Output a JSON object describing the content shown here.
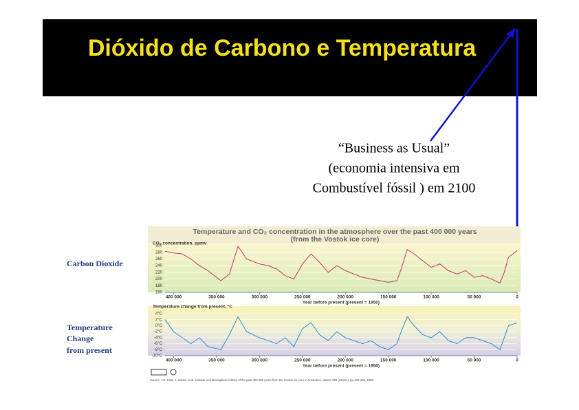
{
  "slide": {
    "title": "Dióxido de Carbono e Temperatura",
    "annotation": [
      "“Business as Usual”",
      "(economia intensiva em",
      "Combustível fóssil ) em 2100"
    ],
    "side_label_co2": "Carbon Dioxide",
    "side_label_temp": [
      "Temperature",
      "Change",
      "from present"
    ],
    "chart_header": [
      "Temperature and CO₂ concentration in the atmosphere over the past 400 000 years",
      "(from the Vostok ice core)"
    ],
    "source": "Source: J.R. Petit, J. Jouzel, et al. Climate and atmospheric history of the past 420 000 years from the Vostok ice core in Antarctica, Nature 399 (3JUne), pp 429-436, 1999."
  },
  "chart_data": [
    {
      "type": "line",
      "title": "CO₂ concentration, ppmv",
      "x_label": "Year before present (present = 1950)",
      "color": "#c2336e",
      "x": [
        410000,
        400000,
        390000,
        380000,
        370000,
        360000,
        345000,
        335000,
        325000,
        315000,
        300000,
        290000,
        280000,
        270000,
        260000,
        250000,
        240000,
        230000,
        220000,
        210000,
        200000,
        190000,
        180000,
        170000,
        160000,
        150000,
        140000,
        135000,
        128000,
        120000,
        110000,
        100000,
        90000,
        80000,
        70000,
        60000,
        50000,
        40000,
        30000,
        20000,
        15000,
        10000,
        5000,
        0
      ],
      "values": [
        283,
        278,
        275,
        260,
        240,
        225,
        195,
        215,
        298,
        260,
        245,
        240,
        230,
        210,
        200,
        245,
        275,
        250,
        220,
        240,
        225,
        215,
        205,
        200,
        195,
        190,
        195,
        230,
        288,
        275,
        255,
        235,
        245,
        225,
        215,
        225,
        205,
        210,
        200,
        188,
        220,
        265,
        275,
        285
      ],
      "xlim": [
        410000,
        0
      ],
      "xticks": [
        {
          "value": 400000,
          "label": "400 000"
        },
        {
          "value": 350000,
          "label": "350 000"
        },
        {
          "value": 300000,
          "label": "300 000"
        },
        {
          "value": 250000,
          "label": "250 000"
        },
        {
          "value": 200000,
          "label": "200 000"
        },
        {
          "value": 150000,
          "label": "150 000"
        },
        {
          "value": 100000,
          "label": "100 000"
        },
        {
          "value": 50000,
          "label": "50 000"
        },
        0
      ],
      "ylim": [
        160,
        300
      ],
      "yticks": [
        160,
        180,
        200,
        220,
        240,
        260,
        280,
        300
      ]
    },
    {
      "type": "line",
      "title": "Temperature change from present, °C",
      "x_label": "Year before present (present = 1950)",
      "color": "#2f8ccc",
      "x": [
        410000,
        400000,
        390000,
        380000,
        370000,
        360000,
        345000,
        335000,
        325000,
        315000,
        300000,
        290000,
        280000,
        270000,
        260000,
        250000,
        240000,
        230000,
        220000,
        210000,
        200000,
        190000,
        180000,
        170000,
        160000,
        150000,
        140000,
        135000,
        128000,
        120000,
        110000,
        100000,
        90000,
        80000,
        70000,
        60000,
        50000,
        40000,
        30000,
        20000,
        15000,
        10000,
        5000,
        0
      ],
      "values": [
        2,
        -2,
        -4,
        -6,
        -4,
        -7,
        -8,
        -3,
        3,
        -2,
        -4,
        -5,
        -6,
        -4,
        -7,
        -1,
        1,
        -3,
        -5,
        -2,
        -4,
        -5,
        -6,
        -5,
        -7,
        -8,
        -6,
        -2,
        3,
        0,
        -3,
        -4,
        -2,
        -5,
        -6,
        -4,
        -4,
        -5,
        -6,
        -8,
        -4,
        0,
        0.5,
        1
      ],
      "xlim": [
        410000,
        0
      ],
      "xticks": [
        {
          "value": 400000,
          "label": "400 000"
        },
        {
          "value": 350000,
          "label": "350 000"
        },
        {
          "value": 300000,
          "label": "300 000"
        },
        {
          "value": 250000,
          "label": "250 000"
        },
        {
          "value": 200000,
          "label": "200 000"
        },
        {
          "value": 150000,
          "label": "150 000"
        },
        {
          "value": 100000,
          "label": "100 000"
        },
        {
          "value": 50000,
          "label": "50 000"
        },
        0
      ],
      "ylim": [
        -10,
        4
      ],
      "yticks": [
        {
          "value": -10,
          "label": "-10°C"
        },
        {
          "value": -8,
          "label": "-8°C"
        },
        {
          "value": -6,
          "label": "-6°C"
        },
        {
          "value": -4,
          "label": "-4°C"
        },
        {
          "value": -2,
          "label": "-2°C"
        },
        {
          "value": 0,
          "label": "0°C"
        },
        {
          "value": 2,
          "label": "2°C"
        },
        {
          "value": 4,
          "label": "4°C"
        }
      ]
    }
  ]
}
